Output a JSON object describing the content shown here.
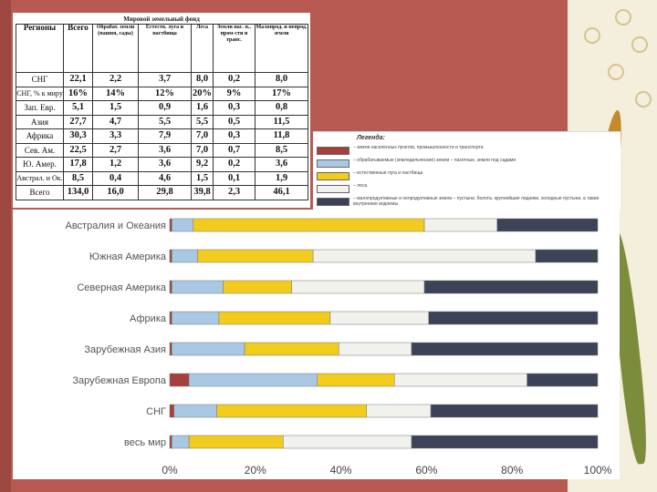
{
  "table": {
    "title": "Мировой земельный фонд",
    "headers": [
      "Регионы",
      "Всего",
      "Обрабат. земли (пашня, сады)",
      "Естеств. луга и пастбища",
      "Леса",
      "Земли нас. п., пром-сти и транс.",
      "Малопрод. и непрод. земли"
    ],
    "rows": [
      [
        "СНГ",
        "22,1",
        "2,2",
        "3,7",
        "8,0",
        "0,2",
        "8,0"
      ],
      [
        "СНГ, % к миру",
        "16%",
        "14%",
        "12%",
        "20%",
        "9%",
        "17%"
      ],
      [
        "Зап. Евр.",
        "5,1",
        "1,5",
        "0,9",
        "1,6",
        "0,3",
        "0,8"
      ],
      [
        "Азия",
        "27,7",
        "4,7",
        "5,5",
        "5,5",
        "0,5",
        "11,5"
      ],
      [
        "Африка",
        "30,3",
        "3,3",
        "7,9",
        "7,0",
        "0,3",
        "11,8"
      ],
      [
        "Сев. Ам.",
        "22,5",
        "2,7",
        "3,6",
        "7,0",
        "0,7",
        "8,5"
      ],
      [
        "Ю. Амер.",
        "17,8",
        "1,2",
        "3,6",
        "9,2",
        "0,2",
        "3,6"
      ],
      [
        "Австрал. и Ок.",
        "8,5",
        "0,4",
        "4,6",
        "1,5",
        "0,1",
        "1,9"
      ],
      [
        "Всего",
        "134,0",
        "16,0",
        "29,8",
        "39,8",
        "2,3",
        "46,1"
      ]
    ]
  },
  "legend": {
    "title": "Легенда:",
    "items": [
      {
        "text": "– земли населенных пунктов, промышленности и транспорта",
        "color": "#a6403c"
      },
      {
        "text": "– обрабатываемые (земледельческие) земли – пахотные, земли под садами",
        "color": "#a9c8e4"
      },
      {
        "text": "– естественные луга и пастбища",
        "color": "#f2cc1c"
      },
      {
        "text": "– леса",
        "color": "#f1f1ee"
      },
      {
        "text": "– малопродуктивные и непродуктивные земли – пустыни, болота, крупнейшие ледники, холодные пустыни, а также внутренние водоемы",
        "color": "#3c4257"
      }
    ]
  },
  "chart_data": {
    "type": "bar",
    "orientation": "horizontal",
    "stacked": true,
    "categories": [
      "Австралия и Океания",
      "Южная Америка",
      "Северная Америка",
      "Африка",
      "Зарубежная Азия",
      "Зарубежная Европа",
      "СНГ",
      "весь мир"
    ],
    "x_ticks": [
      "0%",
      "20%",
      "40%",
      "60%",
      "80%",
      "100%"
    ],
    "xlim": [
      0,
      100
    ],
    "grid": false,
    "colors": [
      "#a6403c",
      "#a9c8e4",
      "#f2cc1c",
      "#f1f1ee",
      "#3c4257"
    ],
    "series": [
      {
        "values": [
          0.5,
          0.5,
          0.5,
          0.5,
          0.5,
          4.5,
          1.0,
          0.5
        ]
      },
      {
        "values": [
          5,
          6,
          12,
          11,
          17,
          30,
          10,
          4
        ]
      },
      {
        "values": [
          54,
          27,
          16,
          26,
          22,
          18,
          35,
          22
        ]
      },
      {
        "values": [
          17,
          52,
          31,
          23,
          17,
          31,
          15,
          30
        ]
      },
      {
        "values": [
          23.5,
          14.5,
          40.5,
          39.5,
          43.5,
          16.5,
          39,
          43.5
        ]
      }
    ]
  }
}
